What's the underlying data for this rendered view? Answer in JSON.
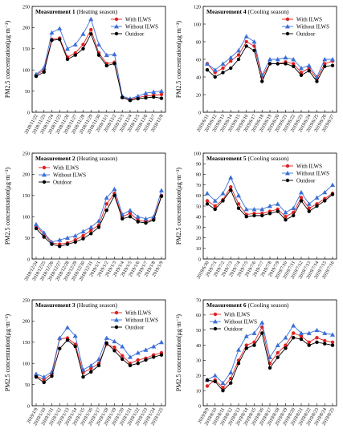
{
  "chart_data": [
    {
      "type": "line",
      "title": "Measurement 1",
      "subtitle": "(Heating season)",
      "y_label": "PM2.5 concentration(μg·m⁻³)",
      "categories": [
        "2018/11/22",
        "2018/11/23",
        "2018/11/24",
        "2018/11/25",
        "2018/11/26",
        "2018/11/27",
        "2018/11/28",
        "2018/11/29",
        "2018/11/30",
        "2018/12/1",
        "2018/12/2",
        "2018/12/3",
        "2018/12/4",
        "2018/12/5",
        "2018/12/6",
        "2018/12/7",
        "2018/12/8"
      ],
      "series": [
        {
          "name": "With ILWS",
          "color": "#e02020",
          "values": [
            88,
            100,
            172,
            175,
            130,
            140,
            160,
            195,
            140,
            115,
            118,
            35,
            30,
            35,
            38,
            40,
            42
          ]
        },
        {
          "name": "Without ILWS",
          "color": "#3a6fd8",
          "values": [
            90,
            105,
            188,
            198,
            150,
            160,
            185,
            220,
            160,
            135,
            137,
            38,
            32,
            38,
            45,
            48,
            50
          ]
        },
        {
          "name": "Outdoor",
          "color": "#000000",
          "values": [
            85,
            95,
            170,
            172,
            125,
            135,
            150,
            185,
            135,
            110,
            115,
            35,
            28,
            32,
            34,
            36,
            33
          ]
        }
      ],
      "ylim": [
        0,
        250
      ],
      "yticks": [
        0,
        50,
        100,
        150,
        200,
        250
      ],
      "legend": "upper right"
    },
    {
      "type": "line",
      "title": "Measurement 4",
      "subtitle": "(Cooling season)",
      "y_label": "PM2.5 concentration(μg·m⁻³)",
      "categories": [
        "2019/6/11",
        "2019/6/12",
        "2019/6/13",
        "2019/6/14",
        "2019/6/15",
        "2019/6/16",
        "2019/6/17",
        "2019/6/18",
        "2019/6/19",
        "2019/6/20",
        "2019/6/21",
        "2019/6/22",
        "2019/6/23",
        "2019/6/24",
        "2019/6/25",
        "2019/6/26",
        "2019/6/27"
      ],
      "series": [
        {
          "name": "With ILWS",
          "color": "#e02020",
          "values": [
            55,
            45,
            50,
            58,
            65,
            80,
            75,
            40,
            55,
            55,
            57,
            55,
            45,
            50,
            38,
            55,
            58
          ]
        },
        {
          "name": "Without ILWS",
          "color": "#3a6fd8",
          "values": [
            55,
            48,
            55,
            62,
            70,
            86,
            80,
            42,
            60,
            60,
            62,
            60,
            50,
            53,
            40,
            60,
            60
          ]
        },
        {
          "name": "Outdoor",
          "color": "#000000",
          "values": [
            48,
            40,
            45,
            50,
            60,
            75,
            70,
            35,
            55,
            55,
            55,
            52,
            42,
            47,
            35,
            52,
            53
          ]
        }
      ],
      "ylim": [
        0,
        120
      ],
      "yticks": [
        0,
        20,
        40,
        60,
        80,
        100,
        120
      ],
      "legend": "upper right"
    },
    {
      "type": "line",
      "title": "Measurement 2",
      "subtitle": "(Heating season)",
      "y_label": "PM2.5 concentration(μg·m⁻³)",
      "categories": [
        "2018/12/24",
        "2018/12/25",
        "2018/12/26",
        "2018/12/27",
        "2018/12/28",
        "2018/12/29",
        "2018/12/30",
        "2018/12/31",
        "2019/1/1",
        "2019/1/2",
        "2019/1/3",
        "2019/1/4",
        "2019/1/5",
        "2019/1/6",
        "2019/1/7",
        "2019/1/8",
        "2019/1/9"
      ],
      "series": [
        {
          "name": "With ILWS",
          "color": "#e02020",
          "values": [
            78,
            58,
            38,
            35,
            38,
            45,
            55,
            68,
            80,
            130,
            155,
            100,
            108,
            92,
            88,
            95,
            150
          ]
        },
        {
          "name": "Without ILWS",
          "color": "#3a6fd8",
          "values": [
            82,
            62,
            40,
            45,
            50,
            55,
            65,
            75,
            90,
            145,
            165,
            105,
            115,
            100,
            95,
            100,
            162
          ]
        },
        {
          "name": "Outdoor",
          "color": "#000000",
          "values": [
            72,
            52,
            35,
            30,
            35,
            40,
            48,
            60,
            75,
            115,
            150,
            95,
            100,
            88,
            85,
            92,
            148
          ]
        }
      ],
      "ylim": [
        0,
        250
      ],
      "yticks": [
        0,
        50,
        100,
        150,
        200,
        250
      ],
      "legend": "upper left"
    },
    {
      "type": "line",
      "title": "Measurement 5",
      "subtitle": "(Cooling season)",
      "y_label": "PM2.5 concentration(μg·m⁻³)",
      "categories": [
        "2019/6/30",
        "2019/7/1",
        "2019/7/2",
        "2019/7/3",
        "2019/7/4",
        "2019/7/5",
        "2019/7/6",
        "2019/7/7",
        "2019/7/8",
        "2019/7/9",
        "2019/7/10",
        "2019/7/11",
        "2019/7/12",
        "2019/7/13",
        "2019/7/14",
        "2019/7/15",
        "2019/7/16"
      ],
      "series": [
        {
          "name": "With ILWS",
          "color": "#e02020",
          "values": [
            55,
            50,
            56,
            68,
            52,
            42,
            43,
            43,
            45,
            47,
            40,
            44,
            58,
            48,
            52,
            57,
            62
          ]
        },
        {
          "name": "Without ILWS",
          "color": "#3a6fd8",
          "values": [
            62,
            55,
            62,
            77,
            60,
            47,
            47,
            47,
            50,
            52,
            44,
            48,
            63,
            52,
            58,
            63,
            70
          ]
        },
        {
          "name": "Outdoor",
          "color": "#000000",
          "values": [
            52,
            47,
            55,
            65,
            48,
            40,
            41,
            41,
            43,
            45,
            37,
            41,
            55,
            45,
            50,
            55,
            61
          ]
        }
      ],
      "ylim": [
        0,
        100
      ],
      "yticks": [
        0,
        10,
        20,
        30,
        40,
        50,
        60,
        70,
        80,
        90,
        100
      ],
      "legend": "upper right"
    },
    {
      "type": "line",
      "title": "Measurement 3",
      "subtitle": "(Heating season)",
      "y_label": "PM2.5 concentration(μg·m⁻³)",
      "categories": [
        "2019/1/9",
        "2019/1/10",
        "2019/1/11",
        "2019/1/12",
        "2019/1/13",
        "2019/1/14",
        "2019/1/15",
        "2019/1/16",
        "2019/1/17",
        "2019/1/18",
        "2019/1/19",
        "2019/1/20",
        "2019/1/21",
        "2019/1/22",
        "2019/1/23",
        "2019/1/24",
        "2019/1/25"
      ],
      "series": [
        {
          "name": "With ILWS",
          "color": "#e02020",
          "values": [
            70,
            62,
            75,
            158,
            160,
            145,
            78,
            88,
            100,
            145,
            138,
            118,
            100,
            108,
            112,
            120,
            125
          ]
        },
        {
          "name": "Without ILWS",
          "color": "#3a6fd8",
          "values": [
            75,
            68,
            80,
            160,
            185,
            165,
            85,
            95,
            110,
            160,
            152,
            140,
            115,
            125,
            132,
            140,
            150
          ]
        },
        {
          "name": "Outdoor",
          "color": "#000000",
          "values": [
            68,
            55,
            70,
            135,
            155,
            140,
            68,
            80,
            95,
            148,
            130,
            110,
            95,
            100,
            108,
            115,
            120
          ]
        }
      ],
      "ylim": [
        0,
        250
      ],
      "yticks": [
        0,
        50,
        100,
        150,
        200,
        250
      ],
      "legend": "upper right"
    },
    {
      "type": "line",
      "title": "Measurement 6",
      "subtitle": "(Cooling season)",
      "y_label": "PM2.5 concentration(μg·m⁻³)",
      "categories": [
        "2019/8/9",
        "2019/8/10",
        "2019/8/11",
        "2019/8/12",
        "2019/8/13",
        "2019/8/14",
        "2019/8/15",
        "2019/8/16",
        "2019/8/17",
        "2019/8/18",
        "2019/8/19",
        "2019/8/20",
        "2019/8/21",
        "2019/8/22",
        "2019/8/23",
        "2019/8/24",
        "2019/8/25"
      ],
      "series": [
        {
          "name": "With ILWS",
          "color": "#e02020",
          "values": [
            13,
            17,
            12,
            18,
            30,
            40,
            42,
            52,
            28,
            35,
            40,
            48,
            46,
            42,
            45,
            43,
            42
          ]
        },
        {
          "name": "Without ILWS",
          "color": "#3a6fd8",
          "values": [
            17,
            20,
            15,
            22,
            37,
            46,
            48,
            55,
            32,
            40,
            45,
            53,
            48,
            48,
            50,
            48,
            47
          ]
        },
        {
          "name": "Outdoor",
          "color": "#000000",
          "values": [
            17,
            16,
            10,
            15,
            28,
            38,
            40,
            48,
            25,
            32,
            38,
            45,
            44,
            40,
            42,
            41,
            40
          ]
        }
      ],
      "ylim": [
        0,
        70
      ],
      "yticks": [
        0,
        10,
        20,
        30,
        40,
        50,
        60,
        70
      ],
      "legend": "upper left"
    }
  ]
}
